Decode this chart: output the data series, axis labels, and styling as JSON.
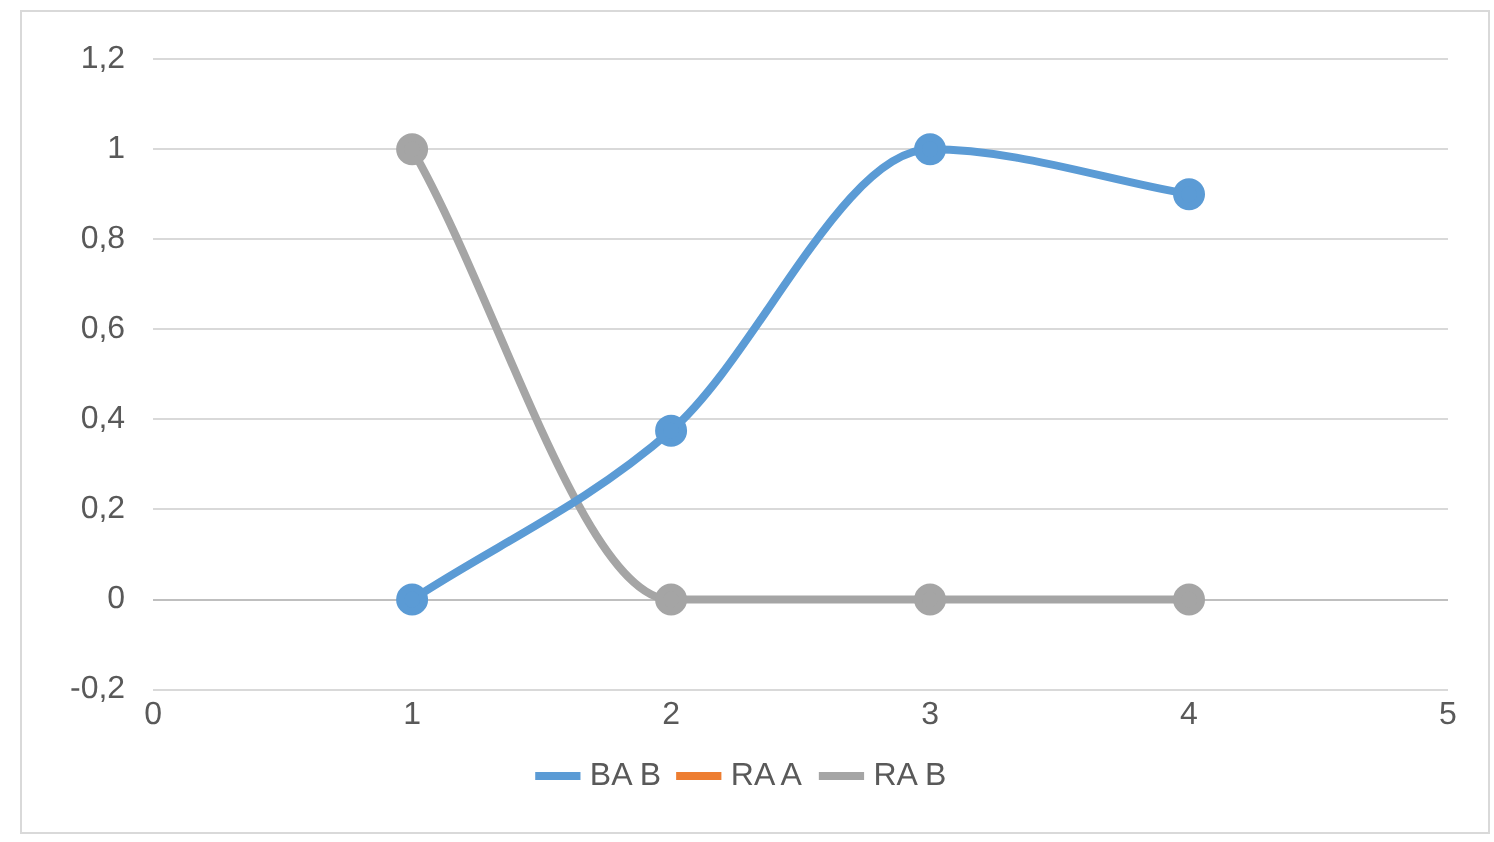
{
  "chart_data": {
    "type": "line",
    "x": [
      1,
      2,
      3,
      4
    ],
    "series": [
      {
        "name": "BA B",
        "color": "#5b9bd5",
        "values": [
          0,
          0.375,
          1,
          0.9
        ]
      },
      {
        "name": "RA A",
        "color": "#ed7d31",
        "values": [
          null,
          null,
          null,
          null
        ]
      },
      {
        "name": "RA B",
        "color": "#a5a5a5",
        "values": [
          1,
          0,
          0,
          0
        ]
      }
    ],
    "xlim": [
      0,
      5
    ],
    "xticks": [
      0,
      1,
      2,
      3,
      4,
      5
    ],
    "ylim": [
      -0.2,
      1.2
    ],
    "yticks": [
      {
        "value": -0.2,
        "label": "-0,2"
      },
      0,
      {
        "value": 0.2,
        "label": "0,2"
      },
      {
        "value": 0.4,
        "label": "0,4"
      },
      {
        "value": 0.6,
        "label": "0,6"
      },
      {
        "value": 0.8,
        "label": "0,8"
      },
      1,
      {
        "value": 1.2,
        "label": "1,2"
      }
    ],
    "grid": "y",
    "legend": "bottom",
    "marker": "circle",
    "line_style": "solid"
  }
}
